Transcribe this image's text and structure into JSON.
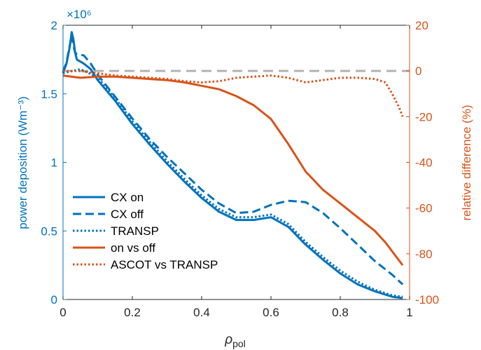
{
  "chart_data": {
    "type": "line",
    "xlabel": "ρ",
    "xlabel_sub": "pol",
    "ylabel_left": "power deposition (Wm⁻³)",
    "ylabel_right": "relative difference (%)",
    "y_left_multiplier": "×10⁶",
    "xlim": [
      0,
      1
    ],
    "ylim_left": [
      0,
      2
    ],
    "ylim_right": [
      -100,
      20
    ],
    "xticks": [
      "0",
      "0.2",
      "0.4",
      "0.6",
      "0.8",
      "1"
    ],
    "yticks_left": [
      "0",
      "0.5",
      "1",
      "1.5",
      "2"
    ],
    "yticks_right": [
      "-100",
      "-80",
      "-60",
      "-40",
      "-20",
      "0",
      "20"
    ],
    "grid": false,
    "legend_position": "bottom-left",
    "colors": {
      "left_axis": "#0072BD",
      "right_axis": "#D95319",
      "zero_line": "#B3B3B3"
    },
    "series": [
      {
        "name": "CX on",
        "axis": "left",
        "style": "solid",
        "color": "#0072BD",
        "x": [
          0.0,
          0.01,
          0.02,
          0.025,
          0.03,
          0.035,
          0.04,
          0.06,
          0.08,
          0.1,
          0.15,
          0.2,
          0.25,
          0.3,
          0.35,
          0.4,
          0.45,
          0.5,
          0.55,
          0.6,
          0.65,
          0.7,
          0.75,
          0.8,
          0.85,
          0.9,
          0.95,
          0.98
        ],
        "y": [
          1.65,
          1.72,
          1.85,
          1.95,
          1.9,
          1.8,
          1.75,
          1.72,
          1.68,
          1.6,
          1.45,
          1.28,
          1.13,
          0.99,
          0.86,
          0.74,
          0.64,
          0.58,
          0.58,
          0.6,
          0.53,
          0.4,
          0.29,
          0.19,
          0.11,
          0.06,
          0.02,
          0.01
        ]
      },
      {
        "name": "CX off",
        "axis": "left",
        "style": "dashed",
        "color": "#0072BD",
        "x": [
          0.0,
          0.01,
          0.02,
          0.025,
          0.03,
          0.035,
          0.04,
          0.06,
          0.08,
          0.1,
          0.15,
          0.2,
          0.25,
          0.3,
          0.35,
          0.4,
          0.45,
          0.5,
          0.55,
          0.6,
          0.65,
          0.7,
          0.75,
          0.8,
          0.85,
          0.9,
          0.95,
          0.98
        ],
        "y": [
          1.66,
          1.73,
          1.86,
          1.93,
          1.85,
          1.8,
          1.79,
          1.78,
          1.72,
          1.64,
          1.48,
          1.32,
          1.17,
          1.04,
          0.92,
          0.8,
          0.7,
          0.63,
          0.64,
          0.69,
          0.72,
          0.71,
          0.63,
          0.52,
          0.4,
          0.28,
          0.18,
          0.11
        ]
      },
      {
        "name": "TRANSP",
        "axis": "left",
        "style": "dotted",
        "color": "#0072BD",
        "x": [
          0.0,
          0.05,
          0.1,
          0.15,
          0.2,
          0.25,
          0.3,
          0.35,
          0.4,
          0.45,
          0.5,
          0.55,
          0.6,
          0.65,
          0.7,
          0.75,
          0.8,
          0.85,
          0.9,
          0.95,
          0.98
        ],
        "y": [
          1.65,
          1.68,
          1.62,
          1.47,
          1.3,
          1.15,
          1.01,
          0.88,
          0.76,
          0.66,
          0.6,
          0.6,
          0.62,
          0.55,
          0.42,
          0.31,
          0.21,
          0.13,
          0.07,
          0.03,
          0.02
        ]
      },
      {
        "name": "on vs off",
        "axis": "right",
        "style": "solid",
        "color": "#D95319",
        "x": [
          0.0,
          0.05,
          0.1,
          0.15,
          0.2,
          0.25,
          0.3,
          0.35,
          0.4,
          0.45,
          0.5,
          0.55,
          0.6,
          0.65,
          0.7,
          0.75,
          0.8,
          0.85,
          0.9,
          0.93,
          0.95,
          0.98
        ],
        "y": [
          -2,
          -3,
          -2.5,
          -2.5,
          -3,
          -3.5,
          -4,
          -5,
          -6.5,
          -8,
          -11,
          -15,
          -21,
          -32,
          -44,
          -52,
          -58,
          -64,
          -70,
          -75,
          -79,
          -85
        ]
      },
      {
        "name": "ASCOT vs TRANSP",
        "axis": "right",
        "style": "dotted",
        "color": "#D95319",
        "x": [
          0.0,
          0.05,
          0.1,
          0.15,
          0.2,
          0.25,
          0.3,
          0.35,
          0.4,
          0.45,
          0.5,
          0.55,
          0.6,
          0.65,
          0.7,
          0.75,
          0.8,
          0.85,
          0.9,
          0.93,
          0.95,
          0.97,
          0.98
        ],
        "y": [
          0,
          0,
          -1,
          -2,
          -2.5,
          -3,
          -3.5,
          -4.5,
          -5,
          -4.5,
          -3,
          -2.5,
          -2,
          -3,
          -5,
          -4,
          -3,
          -3,
          -3.5,
          -5,
          -10,
          -16,
          -20
        ]
      }
    ],
    "reference_line": {
      "axis": "right",
      "y": 0,
      "style": "dashed",
      "color": "#B3B3B3"
    }
  }
}
